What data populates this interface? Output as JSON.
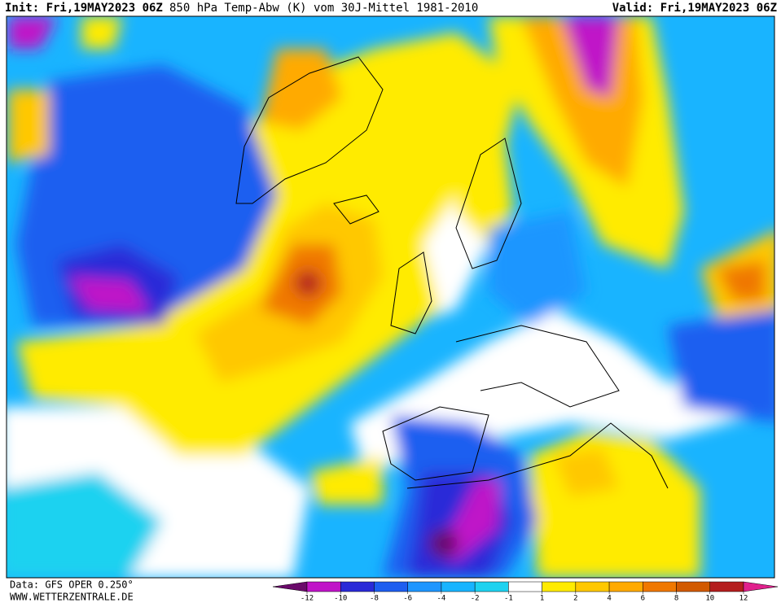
{
  "header": {
    "init": "Init: Fri,19MAY2023 06Z",
    "title": "850 hPa Temp-Abw (K) vom 30J-Mittel 1981-2010",
    "valid": "Valid: Fri,19MAY2023 06Z"
  },
  "footer": {
    "data_source": "Data: GFS OPER 0.250°",
    "website": "WWW.WETTERZENTRALE.DE"
  },
  "colorbar": {
    "ticks": [
      -12,
      -10,
      -8,
      -6,
      -4,
      -2,
      -1,
      1,
      2,
      4,
      6,
      8,
      10,
      12
    ],
    "colors": [
      "#6a0a6a",
      "#c014c8",
      "#2a2ad8",
      "#1e5ef0",
      "#1e96ff",
      "#18b4ff",
      "#1ed2f0",
      "#ffffff",
      "#ffeb00",
      "#ffc800",
      "#ffaa00",
      "#f07800",
      "#d25a00",
      "#b41e1e",
      "#e0208c"
    ]
  }
}
